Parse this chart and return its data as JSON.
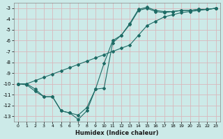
{
  "xlabel": "Humidex (Indice chaleur)",
  "xlim": [
    -0.5,
    23.5
  ],
  "ylim": [
    -13.5,
    -2.5
  ],
  "yticks": [
    -3,
    -4,
    -5,
    -6,
    -7,
    -8,
    -9,
    -10,
    -11,
    -12,
    -13
  ],
  "xticks": [
    0,
    1,
    2,
    3,
    4,
    5,
    6,
    7,
    8,
    9,
    10,
    11,
    12,
    13,
    14,
    15,
    16,
    17,
    18,
    19,
    20,
    21,
    22,
    23
  ],
  "bg_color": "#cceae8",
  "grid_color": "#b8d8d6",
  "line_color": "#1e6b65",
  "line1_x": [
    0,
    1,
    2,
    3,
    4,
    5,
    6,
    7,
    8,
    9,
    10,
    11,
    12,
    13,
    14,
    15,
    16,
    17,
    18,
    19,
    20,
    21,
    22,
    23
  ],
  "line1_y": [
    -10.0,
    -10.0,
    -9.7,
    -9.4,
    -9.1,
    -8.8,
    -8.5,
    -8.2,
    -7.9,
    -7.6,
    -7.3,
    -7.0,
    -6.7,
    -6.4,
    -5.5,
    -4.6,
    -4.2,
    -3.8,
    -3.6,
    -3.4,
    -3.3,
    -3.2,
    -3.1,
    -3.0
  ],
  "line2_x": [
    0,
    1,
    2,
    3,
    4,
    5,
    6,
    7,
    8,
    9,
    10,
    11,
    12,
    13,
    14,
    15,
    16,
    17,
    18,
    19,
    20,
    21,
    22,
    23
  ],
  "line2_y": [
    -10.0,
    -10.0,
    -10.5,
    -11.2,
    -11.2,
    -12.5,
    -12.7,
    -13.3,
    -12.5,
    -10.5,
    -10.4,
    -6.2,
    -5.5,
    -4.5,
    -3.2,
    -3.0,
    -3.3,
    -3.4,
    -3.3,
    -3.2,
    -3.2,
    -3.1,
    -3.1,
    -3.0
  ],
  "line3_x": [
    0,
    1,
    2,
    3,
    4,
    5,
    6,
    7,
    8,
    9,
    10,
    11,
    12,
    13,
    14,
    15,
    16,
    17,
    18,
    19,
    20,
    21,
    22,
    23
  ],
  "line3_y": [
    -10.0,
    -10.1,
    -10.7,
    -11.2,
    -11.2,
    -12.5,
    -12.7,
    -12.9,
    -12.2,
    -10.5,
    -8.1,
    -6.0,
    -5.5,
    -4.4,
    -3.1,
    -2.9,
    -3.2,
    -3.3,
    -3.3,
    -3.2,
    -3.2,
    -3.1,
    -3.1,
    -3.0
  ]
}
